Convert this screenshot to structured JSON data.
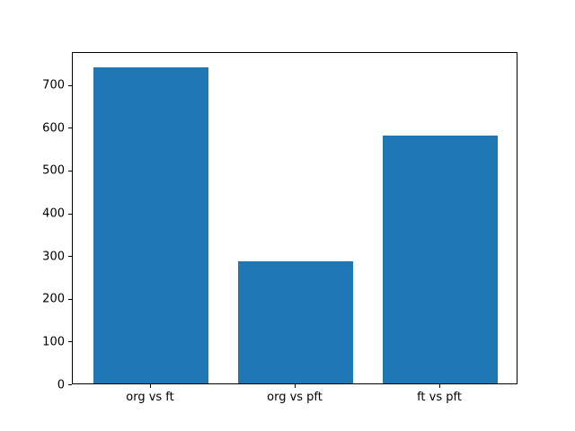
{
  "figure": {
    "background": "#ffffff"
  },
  "chart_data": {
    "type": "bar",
    "categories": [
      "org vs ft",
      "org vs pft",
      "ft vs pft"
    ],
    "values": [
      740,
      285,
      580
    ],
    "title": "",
    "xlabel": "",
    "ylabel": "",
    "ylim": [
      0,
      777
    ],
    "xlim": [
      -0.54,
      2.54
    ],
    "yticks": [
      0,
      100,
      200,
      300,
      400,
      500,
      600,
      700
    ],
    "bar_width": 0.8,
    "bar_color": "#1f77b4",
    "axis_color": "#000000",
    "tick_label_color": "#000000",
    "grid": false,
    "legend": null
  }
}
